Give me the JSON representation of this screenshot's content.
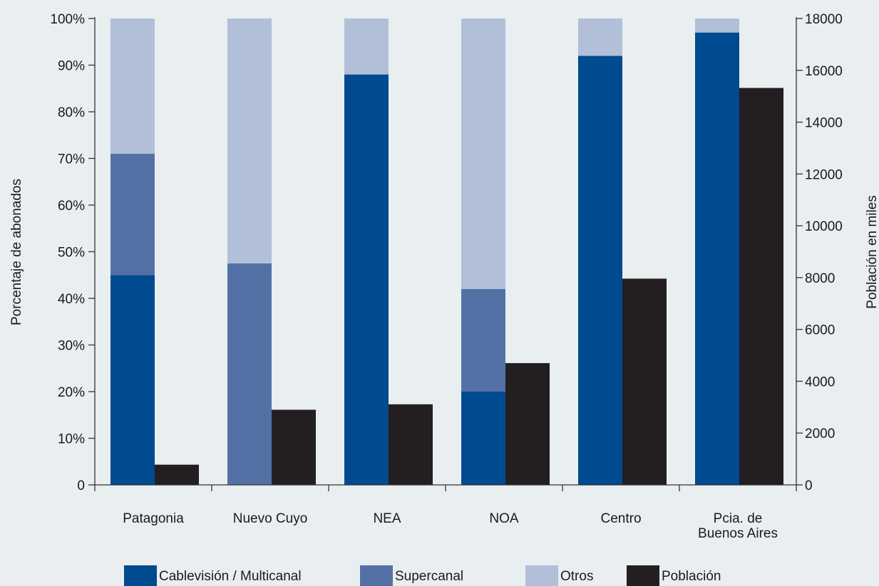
{
  "chart_data": {
    "type": "bar",
    "categories": [
      [
        "Patagonia"
      ],
      [
        "Nuevo Cuyo"
      ],
      [
        "NEA"
      ],
      [
        "NOA"
      ],
      [
        "Centro"
      ],
      [
        "Pcia. de",
        "Buenos Aires"
      ]
    ],
    "left_axis": {
      "label": "Porcentaje de abonados",
      "ylim": [
        0,
        100
      ],
      "ticks": [
        "0",
        "10%",
        "20%",
        "30%",
        "40%",
        "50%",
        "60%",
        "70%",
        "80%",
        "90%",
        "100%"
      ]
    },
    "right_axis": {
      "label": "Población en miles",
      "ylim": [
        0,
        18000
      ],
      "ticks": [
        "0",
        "2000",
        "4000",
        "6000",
        "8000",
        "10000",
        "12000",
        "14000",
        "16000",
        "18000"
      ]
    },
    "stacked_series": [
      {
        "name": "Cablevisión / Multicanal",
        "color": "#004a8f",
        "values": [
          45,
          0,
          88,
          20,
          92,
          97
        ]
      },
      {
        "name": "Supercanal",
        "color": "#5471a6",
        "values": [
          26,
          47.5,
          0,
          22,
          0,
          0
        ]
      },
      {
        "name": "Otros",
        "color": "#b1bfd9",
        "values": [
          29,
          52.5,
          12,
          58,
          8,
          3
        ]
      }
    ],
    "population_series": {
      "name": "Población",
      "color": "#231f20",
      "values": [
        780,
        2900,
        3110,
        4700,
        7960,
        15320
      ]
    },
    "grid": false,
    "legend_position": "bottom"
  }
}
